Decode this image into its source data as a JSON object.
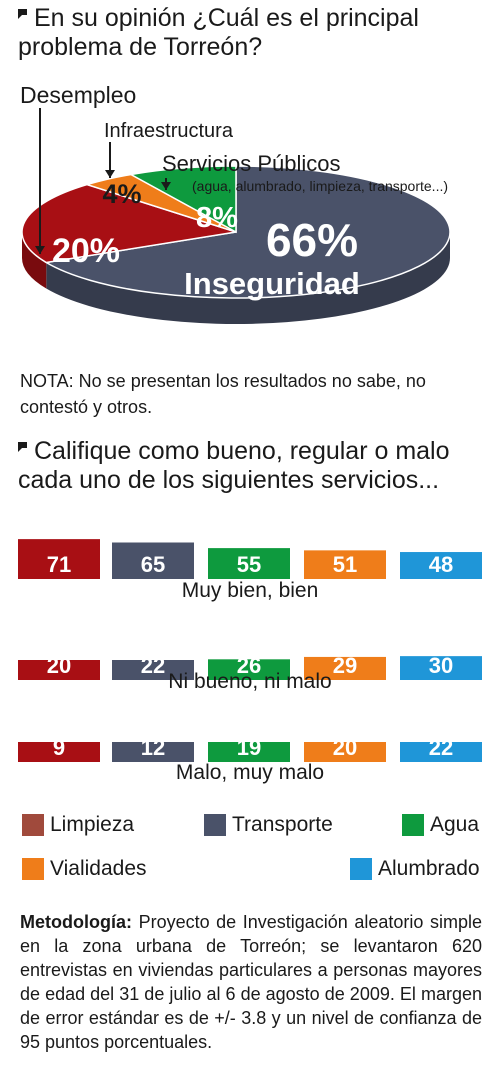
{
  "question1": "En su opinión ¿Cuál es el principal problema de Torreón?",
  "question2": "Califique como bueno, regular o malo cada uno de los siguientes servicios...",
  "note": "NOTA: No se presentan los resultados no sabe, no contestó y otros.",
  "methodology": {
    "label": "Metodología:",
    "text": "Proyecto de Investigación aleatorio simple en la zona urbana de Torreón; se levantaron 620 entrevistas en viviendas particulares a personas mayores de edad del 31 de julio al 6 de agosto de 2009. El margen de error estándar es de +/- 3.8 y un nivel de confianza de 95 puntos porcentuales."
  },
  "colors": {
    "red": "#a80f14",
    "navy": "#4a5269",
    "green": "#0e9a3e",
    "orange": "#ef7d1a",
    "blue": "#1f96d8",
    "legend_red": "#a04a3c"
  },
  "chart_data": [
    {
      "type": "pie",
      "slices": [
        {
          "label": "Inseguridad",
          "value": 66,
          "value_label": "66%",
          "color": "#4a5269"
        },
        {
          "label": "Desempleo",
          "value": 20,
          "value_label": "20%",
          "color": "#a80f14"
        },
        {
          "label": "Infraestructura",
          "value": 4,
          "value_label": "4%",
          "color": "#ef7d1a"
        },
        {
          "label": "Servicios Públicos",
          "sublabel": "(agua, alumbrado, limpieza, transporte...)",
          "value": 8,
          "value_label": "8%",
          "color": "#0e9a3e"
        }
      ]
    },
    {
      "type": "bar",
      "series": [
        {
          "name": "Limpieza",
          "color": "#a80f14"
        },
        {
          "name": "Transporte",
          "color": "#4a5269"
        },
        {
          "name": "Agua",
          "color": "#0e9a3e"
        },
        {
          "name": "Vialidades",
          "color": "#ef7d1a"
        },
        {
          "name": "Alumbrado",
          "color": "#1f96d8"
        }
      ],
      "groups": [
        {
          "label": "Muy bien, bien",
          "values": [
            71,
            65,
            55,
            51,
            48
          ]
        },
        {
          "label": "Ni bueno, ni malo",
          "values": [
            20,
            22,
            26,
            29,
            30
          ]
        },
        {
          "label": "Malo, muy malo",
          "values": [
            9,
            12,
            19,
            20,
            22
          ]
        }
      ]
    }
  ]
}
